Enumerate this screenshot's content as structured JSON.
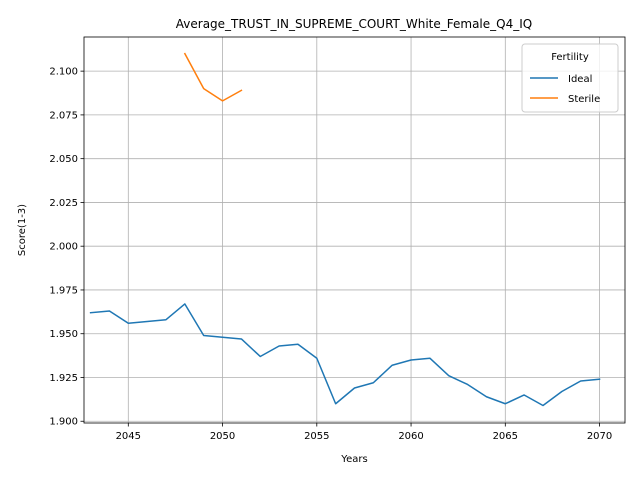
{
  "chart_data": {
    "type": "line",
    "title": "Average_TRUST_IN_SUPREME_COURT_White_Female_Q4_IQ",
    "xlabel": "Years",
    "ylabel": "Score(1-3)",
    "xlim": [
      2042.65,
      2071.35
    ],
    "ylim": [
      1.899,
      2.1195
    ],
    "xticks": [
      2045,
      2050,
      2055,
      2060,
      2065,
      2070
    ],
    "yticks": [
      1.9,
      1.925,
      1.95,
      1.975,
      2.0,
      2.025,
      2.05,
      2.075,
      2.1
    ],
    "grid": true,
    "legend": {
      "title": "Fertility",
      "placement": "top-right"
    },
    "series": [
      {
        "name": "Ideal",
        "color": "#1f77b4",
        "x": [
          2043,
          2044,
          2045,
          2046,
          2047,
          2048,
          2049,
          2050,
          2051,
          2052,
          2053,
          2054,
          2055,
          2056,
          2057,
          2058,
          2059,
          2060,
          2061,
          2062,
          2063,
          2064,
          2065,
          2066,
          2067,
          2068,
          2069,
          2070
        ],
        "y": [
          1.962,
          1.963,
          1.956,
          1.957,
          1.958,
          1.967,
          1.949,
          1.948,
          1.947,
          1.937,
          1.943,
          1.944,
          1.936,
          1.91,
          1.919,
          1.922,
          1.932,
          1.935,
          1.936,
          1.926,
          1.921,
          1.914,
          1.91,
          1.915,
          1.909,
          1.917,
          1.923,
          1.924
        ]
      },
      {
        "name": "Sterile",
        "color": "#ff7f0e",
        "x": [
          2048,
          2049,
          2050,
          2051
        ],
        "y": [
          2.11,
          2.09,
          2.083,
          2.089
        ]
      }
    ]
  }
}
